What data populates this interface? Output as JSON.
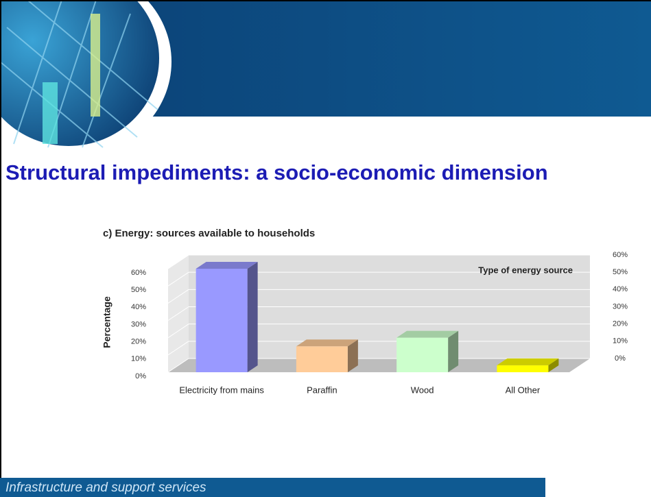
{
  "slide": {
    "title": "Structural impediments: a socio-economic dimension",
    "footer": "Infrastructure and support services"
  },
  "chart_data": {
    "type": "bar3d",
    "title": "c) Energy: sources available to households",
    "ylabel": "Percentage",
    "annotation": "Type of energy source",
    "categories": [
      "Electricity from mains",
      "Paraffin",
      "Wood",
      "All Other"
    ],
    "values": [
      60,
      15,
      20,
      4
    ],
    "colors": [
      "#9999ff",
      "#ffcc99",
      "#ccffcc",
      "#ffff00"
    ],
    "ylim": [
      0,
      60
    ],
    "yticks": [
      {
        "value": 0,
        "label": "0%"
      },
      {
        "value": 10,
        "label": "10%"
      },
      {
        "value": 20,
        "label": "20%"
      },
      {
        "value": 30,
        "label": "30%"
      },
      {
        "value": 40,
        "label": "40%"
      },
      {
        "value": 50,
        "label": "50%"
      },
      {
        "value": 60,
        "label": "60%"
      }
    ],
    "y2lim": [
      0,
      60
    ],
    "y2ticks": [
      {
        "value": 0,
        "label": "0%"
      },
      {
        "value": 10,
        "label": "10%"
      },
      {
        "value": 20,
        "label": "20%"
      },
      {
        "value": 30,
        "label": "30%"
      },
      {
        "value": 40,
        "label": "40%"
      },
      {
        "value": 50,
        "label": "50%"
      },
      {
        "value": 60,
        "label": "60%"
      }
    ],
    "grid": true
  }
}
